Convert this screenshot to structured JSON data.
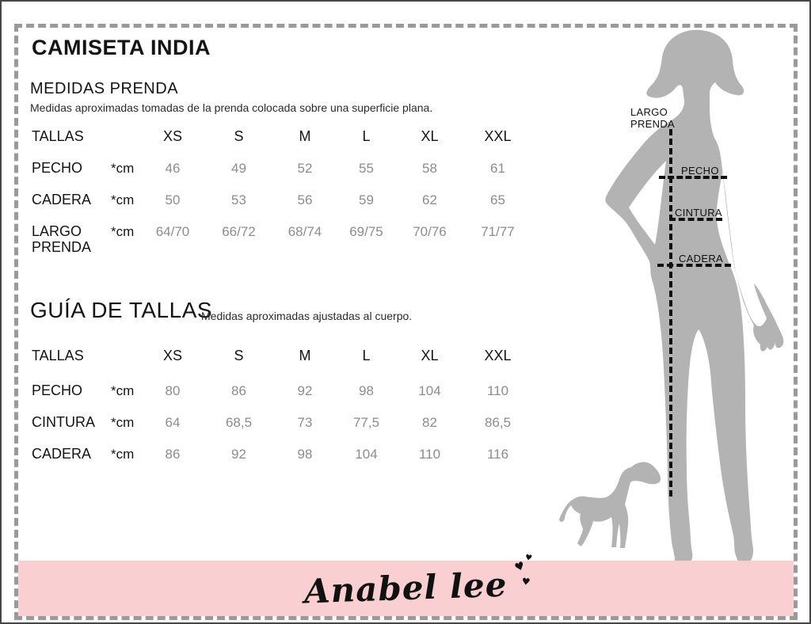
{
  "page": {
    "title": "CAMISETA INDIA"
  },
  "colors": {
    "accent_pink": "#f9cfd1",
    "silhouette_gray": "#b3b3b3",
    "value_gray": "#8c8c8c",
    "dashed_border_gray": "#9a9a9a",
    "text_black": "#141414"
  },
  "garment_measures": {
    "heading": "MEDIDAS PRENDA",
    "subtitle": "Medidas aproximadas tomadas de la prenda colocada sobre una superficie plana.",
    "table": {
      "header_label": "TALLAS",
      "sizes": [
        "XS",
        "S",
        "M",
        "L",
        "XL",
        "XXL"
      ],
      "rows": [
        {
          "label": "PECHO",
          "unit": "*cm",
          "values": [
            "46",
            "49",
            "52",
            "55",
            "58",
            "61"
          ]
        },
        {
          "label": "CADERA",
          "unit": "*cm",
          "values": [
            "50",
            "53",
            "56",
            "59",
            "62",
            "65"
          ]
        },
        {
          "label": "LARGO PRENDA",
          "unit": "*cm",
          "values": [
            "64/70",
            "66/72",
            "68/74",
            "69/75",
            "70/76",
            "71/77"
          ]
        }
      ]
    }
  },
  "size_guide": {
    "heading": "GUÍA DE TALLAS",
    "subtitle": "Medidas aproximadas ajustadas al cuerpo.",
    "table": {
      "header_label": "TALLAS",
      "sizes": [
        "XS",
        "S",
        "M",
        "L",
        "XL",
        "XXL"
      ],
      "rows": [
        {
          "label": "PECHO",
          "unit": "*cm",
          "values": [
            "80",
            "86",
            "92",
            "98",
            "104",
            "110"
          ]
        },
        {
          "label": "CINTURA",
          "unit": "*cm",
          "values": [
            "64",
            "68,5",
            "73",
            "77,5",
            "82",
            "86,5"
          ]
        },
        {
          "label": "CADERA",
          "unit": "*cm",
          "values": [
            "86",
            "92",
            "98",
            "104",
            "110",
            "116"
          ]
        }
      ]
    }
  },
  "figure": {
    "largo_prenda_label": "LARGO PRENDA",
    "pecho_label": "PECHO",
    "cintura_label": "CINTURA",
    "cadera_label": "CADERA"
  },
  "footer": {
    "brand_signature": "Anabel lee"
  }
}
